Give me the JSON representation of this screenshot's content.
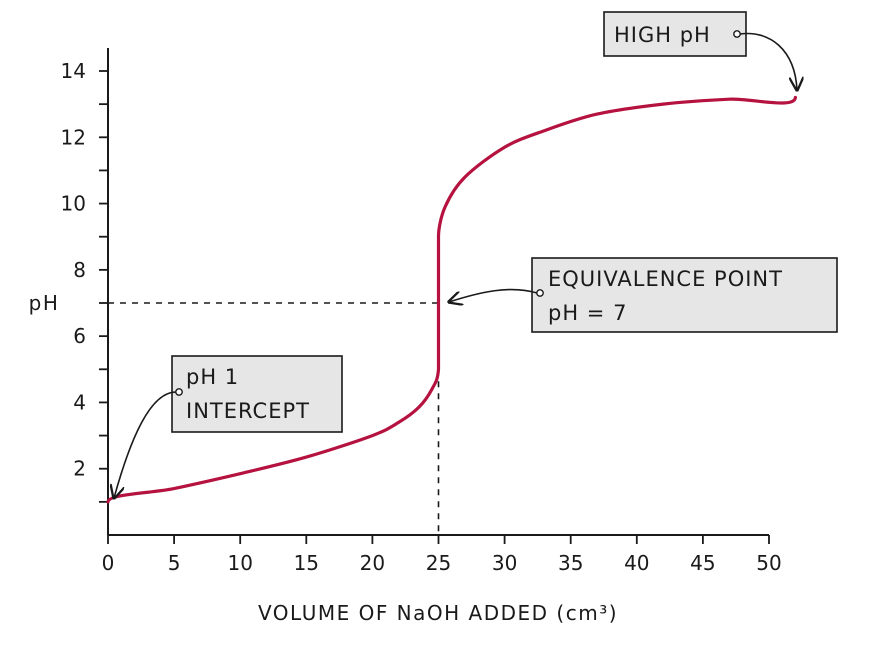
{
  "chart_data": {
    "type": "line",
    "xlabel": "VOLUME OF NaOH ADDED (cm³)",
    "ylabel": "pH",
    "xlim": [
      0,
      50
    ],
    "ylim": [
      0,
      14
    ],
    "x_ticks": [
      0,
      5,
      10,
      15,
      20,
      25,
      30,
      35,
      40,
      45,
      50
    ],
    "y_ticks": [
      2,
      4,
      6,
      8,
      10,
      12,
      14
    ],
    "grid": false,
    "series": [
      {
        "color": "#b5123f",
        "points": [
          [
            0,
            1.0
          ],
          [
            5,
            1.4
          ],
          [
            10,
            1.85
          ],
          [
            15,
            2.35
          ],
          [
            20,
            3.0
          ],
          [
            22,
            3.4
          ],
          [
            23.5,
            3.85
          ],
          [
            24.5,
            4.4
          ],
          [
            25,
            5.0
          ],
          [
            25,
            9.0
          ],
          [
            25.5,
            9.9
          ],
          [
            27,
            10.8
          ],
          [
            30,
            11.7
          ],
          [
            33,
            12.2
          ],
          [
            37,
            12.7
          ],
          [
            42,
            13.0
          ],
          [
            47,
            13.15
          ],
          [
            52,
            13.2
          ]
        ]
      }
    ],
    "guides": {
      "x": 25,
      "y": 7
    },
    "annotations": [
      {
        "text_lines": [
          "HIGH  pH"
        ],
        "points_to": [
          52,
          13.2
        ]
      },
      {
        "text_lines": [
          "EQUIVALENCE POINT",
          "pH = 7"
        ],
        "points_to": [
          25,
          7
        ]
      },
      {
        "text_lines": [
          "pH  1",
          "INTERCEPT"
        ],
        "points_to": [
          0,
          1
        ]
      }
    ]
  }
}
